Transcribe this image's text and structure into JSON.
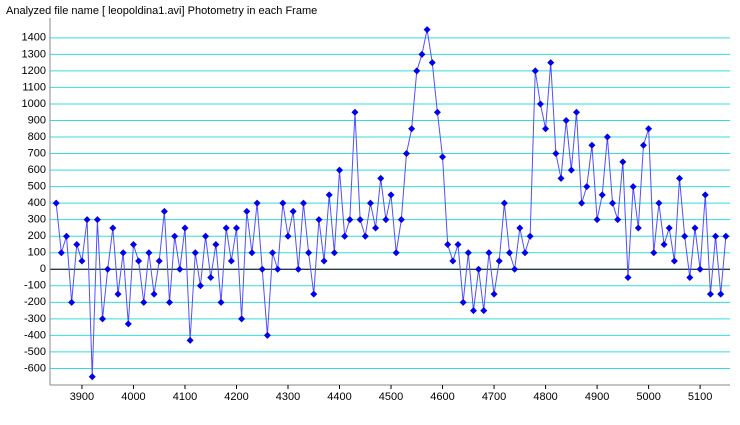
{
  "chart_data": {
    "type": "line",
    "title": "Analyzed file name [ leopoldina1.avi]   Photometry in each Frame",
    "x": [
      3850,
      3860,
      3870,
      3880,
      3890,
      3900,
      3910,
      3920,
      3930,
      3940,
      3950,
      3960,
      3970,
      3980,
      3990,
      4000,
      4010,
      4020,
      4030,
      4040,
      4050,
      4060,
      4070,
      4080,
      4090,
      4100,
      4110,
      4120,
      4130,
      4140,
      4150,
      4160,
      4170,
      4180,
      4190,
      4200,
      4210,
      4220,
      4230,
      4240,
      4250,
      4260,
      4270,
      4280,
      4290,
      4300,
      4310,
      4320,
      4330,
      4340,
      4350,
      4360,
      4370,
      4380,
      4390,
      4400,
      4410,
      4420,
      4430,
      4440,
      4450,
      4460,
      4470,
      4480,
      4490,
      4500,
      4510,
      4520,
      4530,
      4540,
      4550,
      4560,
      4570,
      4580,
      4590,
      4600,
      4610,
      4620,
      4630,
      4640,
      4650,
      4660,
      4670,
      4680,
      4690,
      4700,
      4710,
      4720,
      4730,
      4740,
      4750,
      4760,
      4770,
      4780,
      4790,
      4800,
      4810,
      4820,
      4830,
      4840,
      4850,
      4860,
      4870,
      4880,
      4890,
      4900,
      4910,
      4920,
      4930,
      4940,
      4950,
      4960,
      4970,
      4980,
      4990,
      5000,
      5010,
      5020,
      5030,
      5040,
      5050,
      5060,
      5070,
      5080,
      5090,
      5100,
      5110,
      5120,
      5130,
      5140,
      5150
    ],
    "series": [
      {
        "color": "#0000ee",
        "line_color": "#5050ff",
        "values": [
          400,
          100,
          200,
          -200,
          150,
          50,
          300,
          -650,
          300,
          -300,
          0,
          250,
          -150,
          100,
          -330,
          150,
          50,
          -200,
          100,
          -150,
          50,
          350,
          -200,
          200,
          0,
          250,
          -430,
          100,
          -100,
          200,
          -50,
          150,
          -200,
          250,
          50,
          250,
          -300,
          350,
          100,
          400,
          0,
          -400,
          100,
          0,
          400,
          200,
          350,
          0,
          400,
          100,
          -150,
          300,
          50,
          450,
          100,
          600,
          200,
          300,
          950,
          300,
          200,
          400,
          250,
          550,
          300,
          450,
          100,
          300,
          700,
          850,
          1200,
          1300,
          1450,
          1250,
          950,
          680,
          150,
          50,
          150,
          -200,
          100,
          -250,
          0,
          -250,
          100,
          -150,
          50,
          400,
          100,
          0,
          250,
          100,
          200,
          1200,
          1000,
          850,
          1250,
          700,
          550,
          900,
          600,
          950,
          400,
          500,
          750,
          300,
          450,
          800,
          400,
          300,
          650,
          -50,
          500,
          250,
          750,
          850,
          100,
          400,
          150,
          250,
          50,
          550,
          200,
          -50,
          250,
          0,
          450,
          -150,
          200,
          -150,
          200
        ]
      }
    ],
    "xlim": [
      3838,
      5158
    ],
    "ylim": [
      -700,
      1520
    ],
    "xticks": [
      3900,
      4000,
      4100,
      4200,
      4300,
      4400,
      4500,
      4600,
      4700,
      4800,
      4900,
      5000,
      5100
    ],
    "yticks": [
      -600,
      -500,
      -400,
      -300,
      -200,
      -100,
      0,
      100,
      200,
      300,
      400,
      500,
      600,
      700,
      800,
      900,
      1000,
      1100,
      1200,
      1300,
      1400
    ],
    "grid": true,
    "grid_color": "#33dddd",
    "zero_line": true
  }
}
